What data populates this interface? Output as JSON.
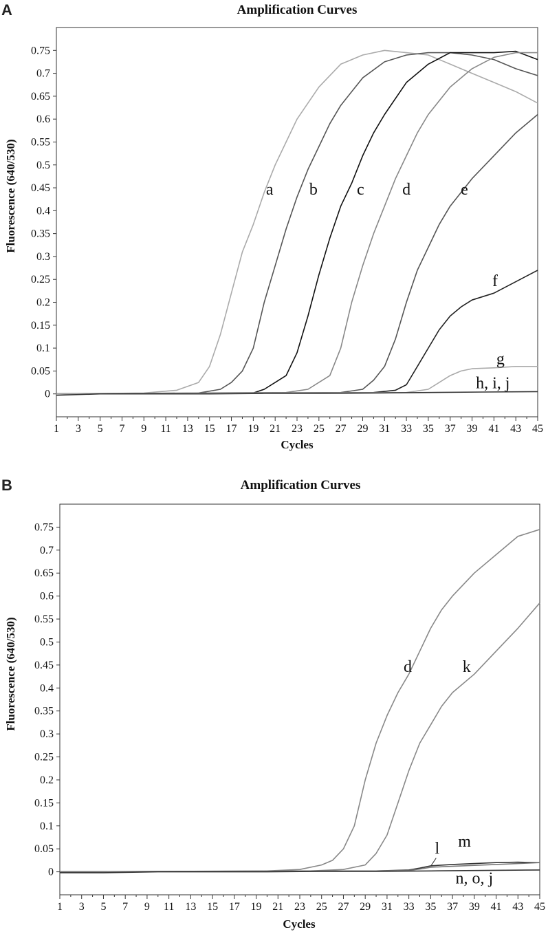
{
  "chart_data": [
    {
      "panel": "A",
      "type": "line",
      "title": "Amplification Curves",
      "xlabel": "Cycles",
      "ylabel": "Fluorescence (640/530)",
      "xlim": [
        1,
        45
      ],
      "ylim": [
        -0.05,
        0.8
      ],
      "x_ticks": [
        "1",
        "3",
        "5",
        "7",
        "9",
        "11",
        "13",
        "15",
        "17",
        "19",
        "21",
        "23",
        "25",
        "27",
        "29",
        "31",
        "33",
        "35",
        "37",
        "39",
        "41",
        "43",
        "45"
      ],
      "y_ticks": [
        "0",
        "0.05",
        "0.1",
        "0.15",
        "0.2",
        "0.25",
        "0.3",
        "0.35",
        "0.4",
        "0.45",
        "0.5",
        "0.55",
        "0.6",
        "0.65",
        "0.7",
        "0.75"
      ],
      "grid": false,
      "legend": "none",
      "series": [
        {
          "name": "a",
          "color": "#aaaaaa",
          "points": [
            [
              1,
              0
            ],
            [
              9,
              0.002
            ],
            [
              12,
              0.008
            ],
            [
              14,
              0.025
            ],
            [
              15,
              0.06
            ],
            [
              16,
              0.13
            ],
            [
              17,
              0.22
            ],
            [
              18,
              0.31
            ],
            [
              19,
              0.37
            ],
            [
              20,
              0.44
            ],
            [
              21,
              0.5
            ],
            [
              22,
              0.55
            ],
            [
              23,
              0.6
            ],
            [
              25,
              0.67
            ],
            [
              27,
              0.72
            ],
            [
              29,
              0.74
            ],
            [
              31,
              0.75
            ],
            [
              33,
              0.745
            ],
            [
              35,
              0.74
            ],
            [
              37,
              0.72
            ],
            [
              39,
              0.7
            ],
            [
              41,
              0.68
            ],
            [
              43,
              0.66
            ],
            [
              45,
              0.635
            ]
          ]
        },
        {
          "name": "b",
          "color": "#555555",
          "points": [
            [
              1,
              0
            ],
            [
              14,
              0.002
            ],
            [
              16,
              0.01
            ],
            [
              17,
              0.025
            ],
            [
              18,
              0.05
            ],
            [
              19,
              0.1
            ],
            [
              20,
              0.2
            ],
            [
              21,
              0.28
            ],
            [
              22,
              0.36
            ],
            [
              23,
              0.43
            ],
            [
              24,
              0.49
            ],
            [
              25,
              0.54
            ],
            [
              26,
              0.59
            ],
            [
              27,
              0.63
            ],
            [
              29,
              0.69
            ],
            [
              31,
              0.725
            ],
            [
              33,
              0.74
            ],
            [
              35,
              0.745
            ],
            [
              37,
              0.745
            ],
            [
              39,
              0.74
            ],
            [
              41,
              0.73
            ],
            [
              43,
              0.71
            ],
            [
              45,
              0.695
            ]
          ]
        },
        {
          "name": "c",
          "color": "#111111",
          "points": [
            [
              1,
              0
            ],
            [
              19,
              0.002
            ],
            [
              20,
              0.01
            ],
            [
              21,
              0.025
            ],
            [
              22,
              0.04
            ],
            [
              23,
              0.09
            ],
            [
              24,
              0.17
            ],
            [
              25,
              0.26
            ],
            [
              26,
              0.34
            ],
            [
              27,
              0.41
            ],
            [
              28,
              0.46
            ],
            [
              29,
              0.52
            ],
            [
              30,
              0.57
            ],
            [
              31,
              0.61
            ],
            [
              33,
              0.68
            ],
            [
              35,
              0.72
            ],
            [
              37,
              0.745
            ],
            [
              39,
              0.745
            ],
            [
              41,
              0.745
            ],
            [
              43,
              0.748
            ],
            [
              45,
              0.73
            ]
          ]
        },
        {
          "name": "d",
          "color": "#888888",
          "points": [
            [
              1,
              0
            ],
            [
              22,
              0.003
            ],
            [
              24,
              0.01
            ],
            [
              26,
              0.04
            ],
            [
              27,
              0.1
            ],
            [
              28,
              0.2
            ],
            [
              29,
              0.28
            ],
            [
              30,
              0.35
            ],
            [
              31,
              0.41
            ],
            [
              32,
              0.47
            ],
            [
              33,
              0.52
            ],
            [
              34,
              0.57
            ],
            [
              35,
              0.61
            ],
            [
              37,
              0.67
            ],
            [
              39,
              0.71
            ],
            [
              41,
              0.735
            ],
            [
              43,
              0.745
            ],
            [
              45,
              0.745
            ]
          ]
        },
        {
          "name": "e",
          "color": "#555555",
          "points": [
            [
              1,
              0
            ],
            [
              27,
              0.003
            ],
            [
              29,
              0.01
            ],
            [
              30,
              0.03
            ],
            [
              31,
              0.06
            ],
            [
              32,
              0.12
            ],
            [
              33,
              0.2
            ],
            [
              34,
              0.27
            ],
            [
              35,
              0.32
            ],
            [
              36,
              0.37
            ],
            [
              37,
              0.41
            ],
            [
              38,
              0.44
            ],
            [
              39,
              0.47
            ],
            [
              41,
              0.52
            ],
            [
              43,
              0.57
            ],
            [
              45,
              0.61
            ]
          ]
        },
        {
          "name": "f",
          "color": "#222222",
          "points": [
            [
              1,
              0
            ],
            [
              30,
              0.003
            ],
            [
              32,
              0.008
            ],
            [
              33,
              0.02
            ],
            [
              34,
              0.06
            ],
            [
              35,
              0.1
            ],
            [
              36,
              0.14
            ],
            [
              37,
              0.17
            ],
            [
              38,
              0.19
            ],
            [
              39,
              0.205
            ],
            [
              41,
              0.22
            ],
            [
              43,
              0.245
            ],
            [
              45,
              0.27
            ]
          ]
        },
        {
          "name": "g",
          "color": "#aaaaaa",
          "points": [
            [
              1,
              0
            ],
            [
              33,
              0.003
            ],
            [
              35,
              0.01
            ],
            [
              36,
              0.025
            ],
            [
              37,
              0.04
            ],
            [
              38,
              0.05
            ],
            [
              39,
              0.055
            ],
            [
              41,
              0.057
            ],
            [
              43,
              0.06
            ],
            [
              45,
              0.06
            ]
          ]
        },
        {
          "name": "h, i, j",
          "color": "#333333",
          "points": [
            [
              1,
              -0.003
            ],
            [
              5,
              0
            ],
            [
              10,
              0
            ],
            [
              15,
              0
            ],
            [
              20,
              0.001
            ],
            [
              25,
              0.001
            ],
            [
              30,
              0.002
            ],
            [
              35,
              0.003
            ],
            [
              40,
              0.004
            ],
            [
              45,
              0.005
            ]
          ]
        }
      ]
    },
    {
      "panel": "B",
      "type": "line",
      "title": "Amplification Curves",
      "xlabel": "Cycles",
      "ylabel": "Fluorescence (640/530)",
      "xlim": [
        1,
        45
      ],
      "ylim": [
        -0.05,
        0.8
      ],
      "x_ticks": [
        "1",
        "3",
        "5",
        "7",
        "9",
        "11",
        "13",
        "15",
        "17",
        "19",
        "21",
        "23",
        "25",
        "27",
        "29",
        "31",
        "33",
        "35",
        "37",
        "39",
        "41",
        "43",
        "45"
      ],
      "y_ticks": [
        "0",
        "0.05",
        "0.1",
        "0.15",
        "0.2",
        "0.25",
        "0.3",
        "0.35",
        "0.4",
        "0.45",
        "0.5",
        "0.55",
        "0.6",
        "0.65",
        "0.7",
        "0.75"
      ],
      "grid": false,
      "legend": "none",
      "series": [
        {
          "name": "d",
          "color": "#888888",
          "points": [
            [
              1,
              0
            ],
            [
              20,
              0.002
            ],
            [
              23,
              0.005
            ],
            [
              25,
              0.015
            ],
            [
              26,
              0.025
            ],
            [
              27,
              0.05
            ],
            [
              28,
              0.1
            ],
            [
              29,
              0.2
            ],
            [
              30,
              0.28
            ],
            [
              31,
              0.34
            ],
            [
              32,
              0.39
            ],
            [
              33,
              0.43
            ],
            [
              34,
              0.48
            ],
            [
              35,
              0.53
            ],
            [
              36,
              0.57
            ],
            [
              37,
              0.6
            ],
            [
              39,
              0.65
            ],
            [
              41,
              0.69
            ],
            [
              43,
              0.73
            ],
            [
              45,
              0.745
            ]
          ]
        },
        {
          "name": "k",
          "color": "#888888",
          "points": [
            [
              1,
              0
            ],
            [
              24,
              0.002
            ],
            [
              27,
              0.005
            ],
            [
              29,
              0.015
            ],
            [
              30,
              0.04
            ],
            [
              31,
              0.08
            ],
            [
              32,
              0.15
            ],
            [
              33,
              0.22
            ],
            [
              34,
              0.28
            ],
            [
              35,
              0.32
            ],
            [
              36,
              0.36
            ],
            [
              37,
              0.39
            ],
            [
              39,
              0.43
            ],
            [
              41,
              0.48
            ],
            [
              43,
              0.53
            ],
            [
              45,
              0.585
            ]
          ]
        },
        {
          "name": "m",
          "color": "#333333",
          "points": [
            [
              1,
              0
            ],
            [
              30,
              0.002
            ],
            [
              33,
              0.004
            ],
            [
              34,
              0.008
            ],
            [
              35,
              0.013
            ],
            [
              37,
              0.016
            ],
            [
              39,
              0.018
            ],
            [
              41,
              0.02
            ],
            [
              43,
              0.021
            ],
            [
              45,
              0.02
            ]
          ]
        },
        {
          "name": "l",
          "color": "#777777",
          "points": [
            [
              1,
              0
            ],
            [
              30,
              0.002
            ],
            [
              33,
              0.003
            ],
            [
              34,
              0.006
            ],
            [
              35,
              0.01
            ],
            [
              37,
              0.012
            ],
            [
              39,
              0.014
            ],
            [
              41,
              0.016
            ],
            [
              43,
              0.018
            ],
            [
              45,
              0.02
            ]
          ]
        },
        {
          "name": "n, o, j",
          "color": "#333333",
          "points": [
            [
              1,
              -0.002
            ],
            [
              5,
              -0.002
            ],
            [
              10,
              0
            ],
            [
              15,
              0
            ],
            [
              20,
              0
            ],
            [
              25,
              0.001
            ],
            [
              30,
              0.001
            ],
            [
              35,
              0.002
            ],
            [
              40,
              0.003
            ],
            [
              45,
              0.004
            ]
          ]
        }
      ]
    }
  ],
  "panels": [
    {
      "letter": "A",
      "labels": [
        {
          "text": "a",
          "x": 20.5,
          "y": 0.435
        },
        {
          "text": "b",
          "x": 24.5,
          "y": 0.435
        },
        {
          "text": "c",
          "x": 28.8,
          "y": 0.435
        },
        {
          "text": "d",
          "x": 33.0,
          "y": 0.435
        },
        {
          "text": "e",
          "x": 38.3,
          "y": 0.435
        },
        {
          "text": "f",
          "x": 41.1,
          "y": 0.235
        },
        {
          "text": "g",
          "x": 41.6,
          "y": 0.065
        },
        {
          "text": "h, i, j",
          "x": 40.9,
          "y": 0.012
        }
      ]
    },
    {
      "letter": "B",
      "labels": [
        {
          "text": "d",
          "x": 32.9,
          "y": 0.435
        },
        {
          "text": "k",
          "x": 38.3,
          "y": 0.435
        },
        {
          "text": "m",
          "x": 38.1,
          "y": 0.055
        },
        {
          "text": "l",
          "x": 35.6,
          "y": 0.04
        },
        {
          "text": "n, o, j",
          "x": 39.0,
          "y": -0.025
        }
      ]
    }
  ]
}
